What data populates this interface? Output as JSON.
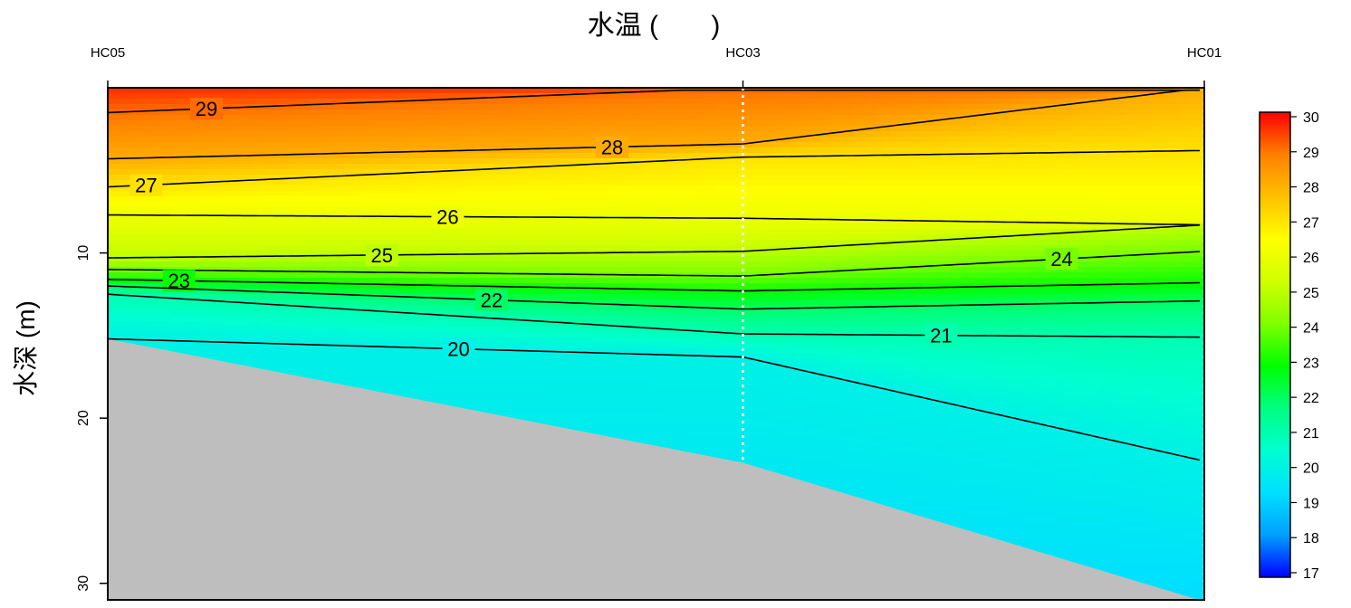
{
  "chart_data": {
    "type": "heatmap",
    "title": "水温 (       )",
    "ylabel": "水深 (m)",
    "stations": [
      "HC05",
      "HC03",
      "HC01"
    ],
    "y_ticks": [
      "10",
      "20",
      "30"
    ],
    "ylim": [
      31,
      0
    ],
    "colorbar": {
      "range": [
        17,
        30
      ],
      "ticks": [
        "17",
        "18",
        "19",
        "20",
        "21",
        "22",
        "23",
        "24",
        "25",
        "26",
        "27",
        "28",
        "29",
        "30"
      ],
      "colors": [
        "#0000ff",
        "#00a0ff",
        "#00e0ff",
        "#00ffd0",
        "#00ff80",
        "#00ff00",
        "#80ff00",
        "#d0ff00",
        "#ffff00",
        "#ffc000",
        "#ff8000",
        "#ff0000"
      ]
    },
    "bottom_depth_m": [
      15.2,
      22.7,
      31.1
    ],
    "contour_levels": [
      "20",
      "21",
      "22",
      "23",
      "24",
      "25",
      "26",
      "27",
      "28",
      "29"
    ],
    "contours": [
      {
        "level": 29,
        "depth_at_stations": [
          1.5,
          0.0,
          0.0
        ]
      },
      {
        "level": 28,
        "depth_at_stations": [
          4.3,
          3.4,
          0.0
        ]
      },
      {
        "level": 27,
        "depth_at_stations": [
          6.0,
          4.2,
          3.8
        ]
      },
      {
        "level": 26,
        "depth_at_stations": [
          7.7,
          7.9,
          8.3
        ]
      },
      {
        "level": 25,
        "depth_at_stations": [
          10.3,
          9.9,
          8.3
        ]
      },
      {
        "level": 24,
        "depth_at_stations": [
          11.0,
          11.4,
          9.9
        ]
      },
      {
        "level": 23,
        "depth_at_stations": [
          11.6,
          12.3,
          11.8
        ]
      },
      {
        "level": 22,
        "depth_at_stations": [
          12.0,
          13.4,
          12.9
        ]
      },
      {
        "level": 21,
        "depth_at_stations": [
          12.5,
          14.9,
          15.1
        ]
      },
      {
        "level": 20,
        "depth_at_stations": [
          15.2,
          16.3,
          22.6
        ]
      }
    ]
  }
}
